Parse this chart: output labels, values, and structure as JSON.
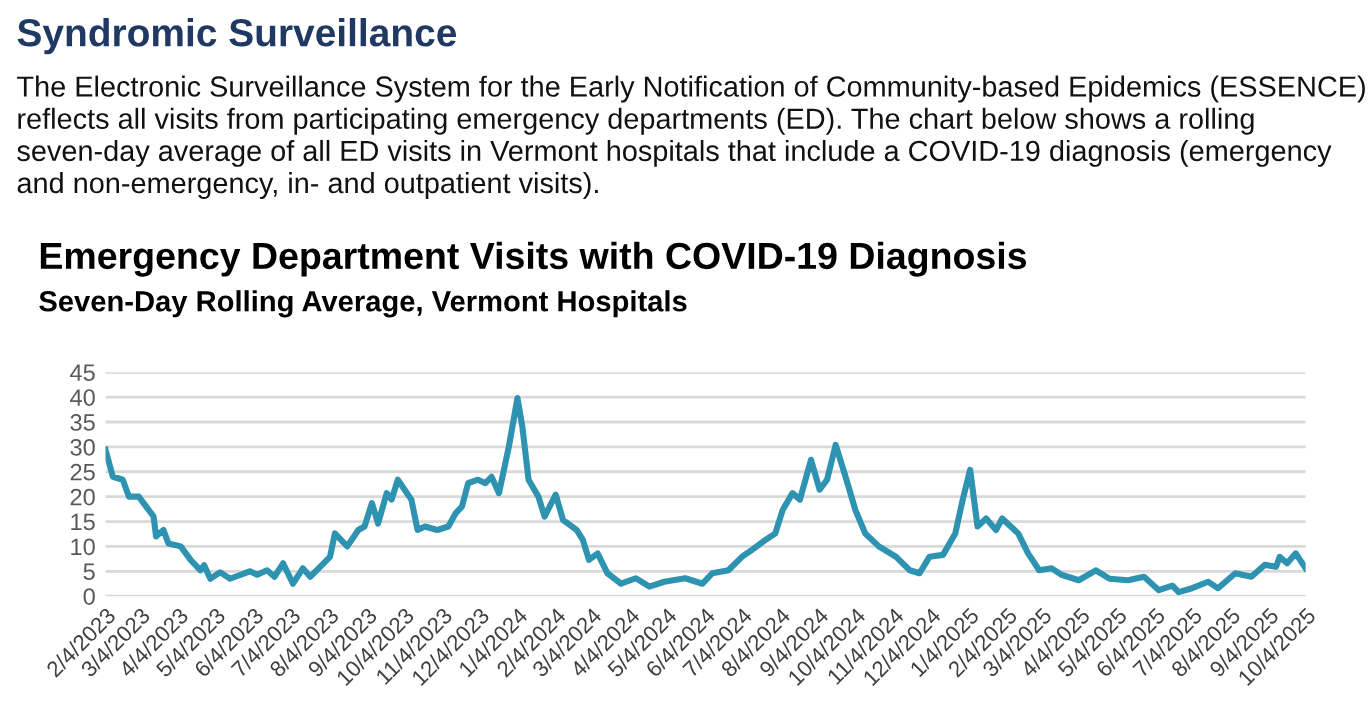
{
  "chart_data": {
    "type": "line",
    "title": "Emergency Department Visits with COVID-19 Diagnosis",
    "subtitle": "Seven-Day Rolling Average, Vermont Hospitals",
    "annotations": [
      "Syndromic Surveillance",
      "The Electronic Surveillance System for the Early Notification of Community-based Epidemics (ESSENCE) reflects all visits from participating emergency departments (ED). The chart below shows a rolling seven-day average of all ED visits in Vermont hospitals that include a COVID-19 diagnosis (emergency and non-emergency, in- and outpatient visits)."
    ],
    "x": [
      "2023-02-04",
      "2023-02-10",
      "2023-02-18",
      "2023-02-23",
      "2023-03-03",
      "2023-03-09",
      "2023-03-15",
      "2023-03-17",
      "2023-03-23",
      "2023-03-27",
      "2023-04-06",
      "2023-04-14",
      "2023-04-22",
      "2023-04-25",
      "2023-04-30",
      "2023-05-08",
      "2023-05-16",
      "2023-06-01",
      "2023-06-07",
      "2023-06-15",
      "2023-06-21",
      "2023-06-28",
      "2023-07-06",
      "2023-07-14",
      "2023-07-20",
      "2023-07-28",
      "2023-08-05",
      "2023-08-09",
      "2023-08-14",
      "2023-08-19",
      "2023-08-28",
      "2023-09-02",
      "2023-09-08",
      "2023-09-13",
      "2023-09-20",
      "2023-09-24",
      "2023-09-29",
      "2023-10-10",
      "2023-10-15",
      "2023-10-21",
      "2023-10-31",
      "2023-11-09",
      "2023-11-15",
      "2023-11-20",
      "2023-11-25",
      "2023-12-03",
      "2023-12-09",
      "2023-12-14",
      "2023-12-20",
      "2023-12-28",
      "2024-01-04",
      "2024-01-08",
      "2024-01-13",
      "2024-01-21",
      "2024-01-26",
      "2024-02-04",
      "2024-02-10",
      "2024-02-21",
      "2024-02-26",
      "2024-03-02",
      "2024-03-09",
      "2024-03-17",
      "2024-03-28",
      "2024-04-09",
      "2024-04-20",
      "2024-05-02",
      "2024-05-19",
      "2024-06-02",
      "2024-06-10",
      "2024-06-23",
      "2024-07-04",
      "2024-07-12",
      "2024-07-23",
      "2024-07-31",
      "2024-08-06",
      "2024-08-14",
      "2024-08-20",
      "2024-08-29",
      "2024-09-05",
      "2024-09-11",
      "2024-09-18",
      "2024-09-26",
      "2024-10-04",
      "2024-10-12",
      "2024-10-23",
      "2024-11-06",
      "2024-11-17",
      "2024-11-25",
      "2024-12-03",
      "2024-12-14",
      "2024-12-24",
      "2024-12-30",
      "2025-01-05",
      "2025-01-11",
      "2025-01-18",
      "2025-01-26",
      "2025-01-31",
      "2025-02-13",
      "2025-02-21",
      "2025-03-02",
      "2025-03-12",
      "2025-03-20",
      "2025-04-03",
      "2025-04-17",
      "2025-04-28",
      "2025-05-13",
      "2025-05-26",
      "2025-06-07",
      "2025-06-18",
      "2025-06-23",
      "2025-07-04",
      "2025-07-17",
      "2025-07-25",
      "2025-08-08",
      "2025-08-21",
      "2025-09-01",
      "2025-09-10",
      "2025-09-13",
      "2025-09-19",
      "2025-09-26",
      "2025-10-04"
    ],
    "series": [
      {
        "color": "#2e93b0",
        "values": [
          29.4,
          24,
          23.4,
          20,
          20,
          18,
          16,
          12,
          13.3,
          10.6,
          10,
          7.3,
          5.2,
          6.2,
          3.5,
          4.8,
          3.5,
          5,
          4.3,
          5.2,
          3.9,
          6.6,
          2.5,
          5.6,
          3.9,
          5.9,
          7.9,
          12.6,
          11.3,
          10,
          13.3,
          14,
          18.7,
          14.6,
          20.7,
          19.4,
          23.4,
          19.4,
          13.3,
          14,
          13.3,
          14,
          16.7,
          18,
          22.7,
          23.4,
          22.7,
          24,
          20.7,
          30,
          39.8,
          34,
          23.4,
          20,
          16,
          20.4,
          15.3,
          13.3,
          11.3,
          7.3,
          8.6,
          4.6,
          2.5,
          3.6,
          1.9,
          2.9,
          3.6,
          2.5,
          4.6,
          5.2,
          7.9,
          9.3,
          11.3,
          12.6,
          17.3,
          20.7,
          19.4,
          27.4,
          21.4,
          23.4,
          30.4,
          24,
          17.3,
          12.6,
          10,
          7.9,
          5.2,
          4.6,
          7.9,
          8.3,
          12.6,
          19.4,
          25.4,
          14,
          15.6,
          13.3,
          15.6,
          12.6,
          8.6,
          5.2,
          5.6,
          4.3,
          3.2,
          5.2,
          3.5,
          3.2,
          3.9,
          1.2,
          2.1,
          0.8,
          1.6,
          2.9,
          1.6,
          4.6,
          3.9,
          6.3,
          5.9,
          7.9,
          6.6,
          8.6,
          5.6
        ]
      }
    ],
    "xlim": [
      "2023-02-04",
      "2025-10-04"
    ],
    "xticks": [
      {
        "value": "2023-02-04",
        "label": "2/4/2023"
      },
      {
        "value": "2023-03-04",
        "label": "3/4/2023"
      },
      {
        "value": "2023-04-04",
        "label": "4/4/2023"
      },
      {
        "value": "2023-05-04",
        "label": "5/4/2023"
      },
      {
        "value": "2023-06-04",
        "label": "6/4/2023"
      },
      {
        "value": "2023-07-04",
        "label": "7/4/2023"
      },
      {
        "value": "2023-08-04",
        "label": "8/4/2023"
      },
      {
        "value": "2023-09-04",
        "label": "9/4/2023"
      },
      {
        "value": "2023-10-04",
        "label": "10/4/2023"
      },
      {
        "value": "2023-11-04",
        "label": "11/4/2023"
      },
      {
        "value": "2023-12-04",
        "label": "12/4/2023"
      },
      {
        "value": "2024-01-04",
        "label": "1/4/2024"
      },
      {
        "value": "2024-02-04",
        "label": "2/4/2024"
      },
      {
        "value": "2024-03-04",
        "label": "3/4/2024"
      },
      {
        "value": "2024-04-04",
        "label": "4/4/2024"
      },
      {
        "value": "2024-05-04",
        "label": "5/4/2024"
      },
      {
        "value": "2024-06-04",
        "label": "6/4/2024"
      },
      {
        "value": "2024-07-04",
        "label": "7/4/2024"
      },
      {
        "value": "2024-08-04",
        "label": "8/4/2024"
      },
      {
        "value": "2024-09-04",
        "label": "9/4/2024"
      },
      {
        "value": "2024-10-04",
        "label": "10/4/2024"
      },
      {
        "value": "2024-11-04",
        "label": "11/4/2024"
      },
      {
        "value": "2024-12-04",
        "label": "12/4/2024"
      },
      {
        "value": "2025-01-04",
        "label": "1/4/2025"
      },
      {
        "value": "2025-02-04",
        "label": "2/4/2025"
      },
      {
        "value": "2025-03-04",
        "label": "3/4/2025"
      },
      {
        "value": "2025-04-04",
        "label": "4/4/2025"
      },
      {
        "value": "2025-05-04",
        "label": "5/4/2025"
      },
      {
        "value": "2025-06-04",
        "label": "6/4/2025"
      },
      {
        "value": "2025-07-04",
        "label": "7/4/2025"
      },
      {
        "value": "2025-08-04",
        "label": "8/4/2025"
      },
      {
        "value": "2025-09-04",
        "label": "9/4/2025"
      },
      {
        "value": "2025-10-04",
        "label": "10/4/2025"
      }
    ],
    "ylim": [
      0,
      45
    ],
    "yticks": [
      0,
      5,
      10,
      15,
      20,
      25,
      30,
      35,
      40,
      45
    ],
    "grid": "y",
    "marker": "none",
    "line_style": "solid",
    "legend": false
  }
}
